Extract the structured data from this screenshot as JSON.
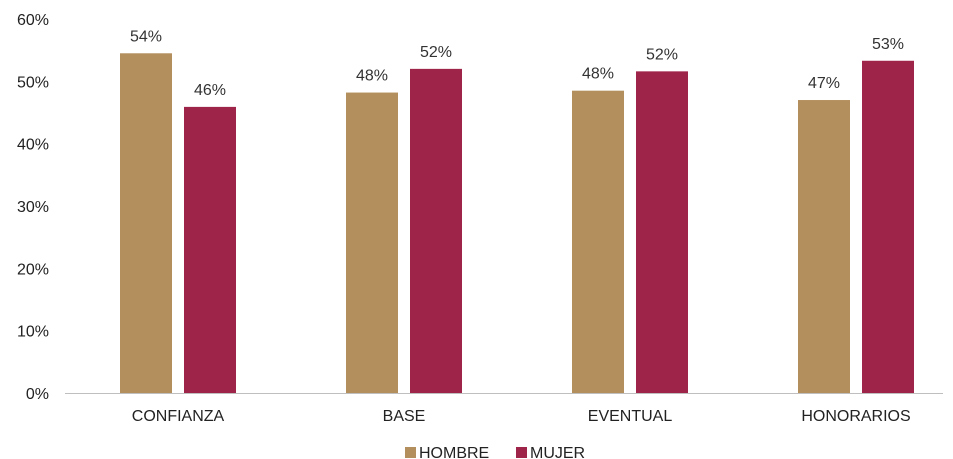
{
  "chart_data": {
    "type": "bar",
    "categories": [
      "CONFIANZA",
      "BASE",
      "EVENTUAL",
      "HONORARIOS"
    ],
    "series": [
      {
        "name": "HOMBRE",
        "values": [
          54.5,
          48.2,
          48.5,
          47.0
        ],
        "labels": [
          "54%",
          "48%",
          "48%",
          "47%"
        ],
        "color": "#B48F5E"
      },
      {
        "name": "MUJER",
        "values": [
          45.9,
          52.0,
          51.6,
          53.3
        ],
        "labels": [
          "46%",
          "52%",
          "52%",
          "53%"
        ],
        "color": "#9E2449"
      }
    ],
    "y_ticks": [
      "0%",
      "10%",
      "20%",
      "30%",
      "40%",
      "50%",
      "60%"
    ],
    "ylim": [
      0,
      60
    ],
    "grid": false,
    "legend_position": "bottom"
  }
}
